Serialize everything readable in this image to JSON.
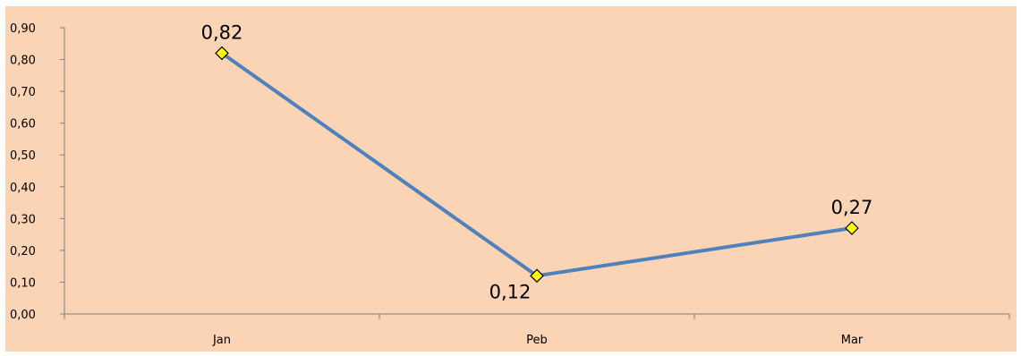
{
  "chart_data": {
    "type": "line",
    "title": "",
    "xlabel": "",
    "ylabel": "",
    "categories": [
      "Jan",
      "Peb",
      "Mar"
    ],
    "series": [
      {
        "values": [
          0.82,
          0.12,
          0.27
        ]
      }
    ],
    "data_labels": [
      "0,82",
      "0,12",
      "0,27"
    ],
    "y_ticks": [
      0.0,
      0.1,
      0.2,
      0.3,
      0.4,
      0.5,
      0.6,
      0.7,
      0.8,
      0.9
    ],
    "y_tick_labels": [
      "0,00",
      "0,10",
      "0,20",
      "0,30",
      "0,40",
      "0,50",
      "0,60",
      "0,70",
      "0,80",
      "0,90"
    ],
    "ylim": [
      0,
      0.9
    ],
    "grid": false,
    "legend": "none",
    "colors": {
      "background": "#FAD4B4",
      "line": "#4F81BD",
      "marker_fill": "#FFFF00",
      "marker_stroke": "#000000",
      "axis": "#808080"
    }
  }
}
